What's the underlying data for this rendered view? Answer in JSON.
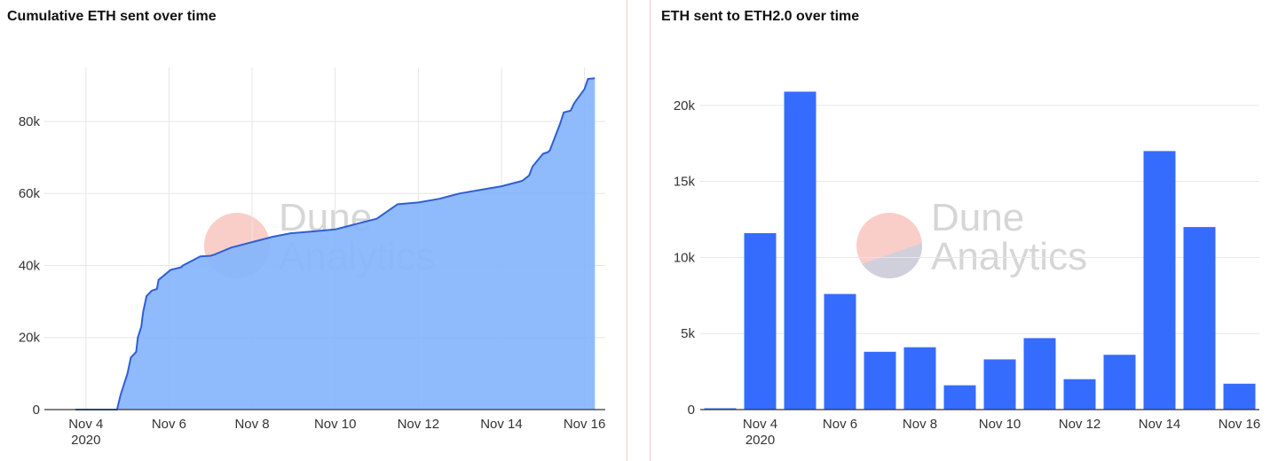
{
  "watermark": {
    "line1": "Dune",
    "line2": "Analytics"
  },
  "colors": {
    "area_fill": "#85b4fb",
    "area_line": "#2f5fd4",
    "bar": "#356cfd",
    "grid": "#e6e6e6",
    "axis": "#333333",
    "watermark_red": "#f9c6c0",
    "watermark_blue": "#c8c8d8"
  },
  "chart_data": [
    {
      "type": "area",
      "title": "Cumulative ETH sent over time",
      "xlabel": "",
      "ylabel": "",
      "x_range": [
        "2020-11-03 00:00",
        "2020-11-16 12:00"
      ],
      "ylim": [
        0,
        95000
      ],
      "yticks": [
        0,
        20000,
        40000,
        60000,
        80000
      ],
      "ytick_labels": [
        "0",
        "20k",
        "40k",
        "60k",
        "80k"
      ],
      "xticks": [
        "2020-11-04",
        "2020-11-06",
        "2020-11-08",
        "2020-11-10",
        "2020-11-12",
        "2020-11-14",
        "2020-11-16"
      ],
      "xtick_labels": [
        "Nov 4",
        "Nov 6",
        "Nov 8",
        "Nov 10",
        "Nov 12",
        "Nov 14",
        "Nov 16"
      ],
      "xtick_sublabel": "2020",
      "grid": true,
      "series": [
        {
          "x": [
            "2020-11-03 18:00",
            "2020-11-04 18:00",
            "2020-11-04 20:00",
            "2020-11-04 22:00",
            "2020-11-05 00:00",
            "2020-11-05 02:00",
            "2020-11-05 03:00",
            "2020-11-05 05:00",
            "2020-11-05 06:00",
            "2020-11-05 08:00",
            "2020-11-05 09:00",
            "2020-11-05 11:00",
            "2020-11-05 13:00",
            "2020-11-05 14:00",
            "2020-11-05 17:00",
            "2020-11-05 18:00",
            "2020-11-06 01:00",
            "2020-11-06 07:00",
            "2020-11-06 08:00",
            "2020-11-06 18:00",
            "2020-11-07 00:00",
            "2020-11-07 02:00",
            "2020-11-07 12:00",
            "2020-11-08 12:00",
            "2020-11-08 23:00",
            "2020-11-09 00:00",
            "2020-11-09 12:00",
            "2020-11-10 00:00",
            "2020-11-10 12:00",
            "2020-11-11 00:00",
            "2020-11-11 12:00",
            "2020-11-12 00:00",
            "2020-11-12 12:00",
            "2020-11-13 00:00",
            "2020-11-13 12:00",
            "2020-11-14 00:00",
            "2020-11-14 12:00",
            "2020-11-14 16:00",
            "2020-11-14 18:00",
            "2020-11-15 00:00",
            "2020-11-15 03:00",
            "2020-11-15 04:00",
            "2020-11-15 10:00",
            "2020-11-15 12:00",
            "2020-11-15 16:00",
            "2020-11-15 18:00",
            "2020-11-16 00:00",
            "2020-11-16 02:00",
            "2020-11-16 06:00"
          ],
          "values": [
            0,
            0,
            4000,
            7000,
            10000,
            14500,
            15000,
            16000,
            20000,
            23000,
            27000,
            31500,
            32500,
            33000,
            33500,
            36000,
            38800,
            39500,
            40000,
            42500,
            42700,
            43000,
            45000,
            48000,
            49000,
            49000,
            49500,
            50000,
            51500,
            53000,
            57000,
            57500,
            58500,
            60000,
            61000,
            62000,
            63500,
            65000,
            67500,
            71000,
            71500,
            72000,
            79500,
            82500,
            83000,
            85000,
            89000,
            91800,
            92000
          ]
        }
      ]
    },
    {
      "type": "bar",
      "title": "ETH sent to ETH2.0 over time",
      "xlabel": "",
      "ylabel": "",
      "categories": [
        "Nov 3",
        "Nov 4",
        "Nov 5",
        "Nov 6",
        "Nov 7",
        "Nov 8",
        "Nov 9",
        "Nov 10",
        "Nov 11",
        "Nov 12",
        "Nov 13",
        "Nov 14",
        "Nov 15",
        "Nov 16"
      ],
      "values": [
        50,
        11600,
        20900,
        7600,
        3800,
        4100,
        1600,
        3300,
        4700,
        2000,
        3600,
        17000,
        12000,
        1700
      ],
      "ylim": [
        0,
        22500
      ],
      "yticks": [
        0,
        5000,
        10000,
        15000,
        20000
      ],
      "ytick_labels": [
        "0",
        "5k",
        "10k",
        "15k",
        "20k"
      ],
      "xtick_labels": [
        "Nov 4",
        "Nov 6",
        "Nov 8",
        "Nov 10",
        "Nov 12",
        "Nov 14",
        "Nov 16"
      ],
      "xtick_sublabel": "2020",
      "grid": true
    }
  ]
}
